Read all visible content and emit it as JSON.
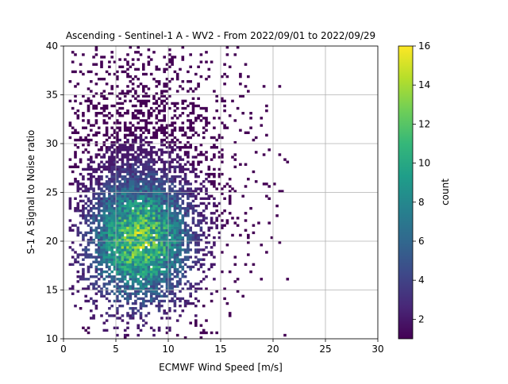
{
  "chart_data": {
    "type": "heatmap",
    "title": "Ascending - Sentinel-1 A - WV2 - From 2022/09/01 to 2022/09/29",
    "xlabel": "ECMWF Wind Speed [m/s]",
    "ylabel": "S-1 A Signal to Noise ratio",
    "xlim": [
      0,
      30
    ],
    "ylim": [
      10,
      40
    ],
    "xticks": [
      "0",
      "5",
      "10",
      "15",
      "20",
      "25",
      "30"
    ],
    "yticks": [
      "10",
      "15",
      "20",
      "25",
      "30",
      "35",
      "40"
    ],
    "grid": true,
    "bin_width_x": 0.25,
    "bin_width_y": 0.25,
    "density": {
      "center_x": 7.2,
      "center_y": 20,
      "sigma_x": 3.2,
      "sigma_y": 4.2,
      "peak_count": 16,
      "x_range": [
        0.5,
        21.5
      ],
      "y_range": [
        10,
        40
      ]
    },
    "colorbar": {
      "label": "count",
      "min": 1,
      "max": 16,
      "ticks": [
        "2",
        "4",
        "6",
        "8",
        "10",
        "12",
        "14",
        "16"
      ],
      "colormap": "viridis",
      "colors": [
        "#440154",
        "#482878",
        "#3e4989",
        "#31688e",
        "#26828e",
        "#1f9e89",
        "#35b779",
        "#6ece58",
        "#b5de2b",
        "#fde725"
      ]
    }
  }
}
